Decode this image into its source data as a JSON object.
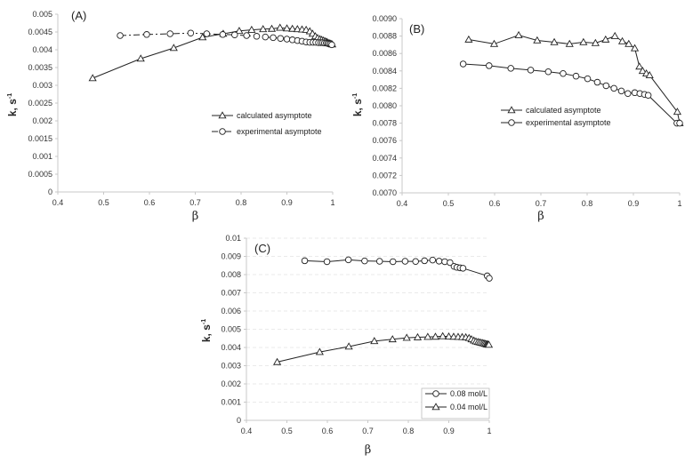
{
  "chart_data": [
    {
      "type": "line",
      "panel_label": "(A)",
      "xlabel": "β",
      "ylabel": "k, s",
      "ylabel_sup": "-1",
      "xlim": [
        0.4,
        1
      ],
      "ylim": [
        0,
        0.005
      ],
      "xticks": [
        "0.4",
        "0.5",
        "0.6",
        "0.7",
        "0.8",
        "0.9",
        "1"
      ],
      "yticks": [
        "0",
        "0.0005",
        "0.001",
        "0.0015",
        "0.002",
        "0.0025",
        "0.003",
        "0.0035",
        "0.004",
        "0.0045",
        "0.005"
      ],
      "grid": false,
      "legend_position": "center-right",
      "series": [
        {
          "name": "calculated asymptote",
          "marker": "triangle",
          "line": "solid",
          "x": [
            0.476,
            0.581,
            0.653,
            0.716,
            0.761,
            0.796,
            0.823,
            0.848,
            0.867,
            0.885,
            0.9,
            0.912,
            0.923,
            0.933,
            0.942,
            0.95,
            0.956,
            0.962,
            0.967,
            0.972,
            0.976,
            0.98,
            0.984,
            0.987,
            0.99,
            0.993,
            0.995,
            0.997,
            0.999
          ],
          "y": [
            0.0032,
            0.00375,
            0.00405,
            0.00435,
            0.00445,
            0.00453,
            0.00456,
            0.00458,
            0.00459,
            0.00462,
            0.0046,
            0.00459,
            0.00458,
            0.00457,
            0.00456,
            0.00452,
            0.00445,
            0.00438,
            0.00433,
            0.0043,
            0.00428,
            0.00426,
            0.00424,
            0.00422,
            0.0042,
            0.00418,
            0.00417,
            0.00416,
            0.00415
          ]
        },
        {
          "name": "experimental asymptote",
          "marker": "circle",
          "line": "dashed",
          "x": [
            0.536,
            0.594,
            0.645,
            0.69,
            0.725,
            0.76,
            0.786,
            0.812,
            0.834,
            0.853,
            0.87,
            0.886,
            0.9,
            0.912,
            0.923,
            0.933,
            0.942,
            0.95,
            0.957,
            0.963,
            0.969,
            0.974,
            0.978,
            0.982,
            0.986,
            0.989,
            0.992,
            0.995,
            0.998
          ],
          "y": [
            0.0044,
            0.00443,
            0.00445,
            0.00447,
            0.00445,
            0.00443,
            0.00442,
            0.0044,
            0.00438,
            0.00436,
            0.00434,
            0.00432,
            0.0043,
            0.00428,
            0.00426,
            0.00424,
            0.00422,
            0.00421,
            0.00421,
            0.00421,
            0.0042,
            0.0042,
            0.0042,
            0.00419,
            0.00419,
            0.00418,
            0.00417,
            0.00416,
            0.00414
          ]
        }
      ]
    },
    {
      "type": "line",
      "panel_label": "(B)",
      "xlabel": "β",
      "ylabel": "k, s",
      "ylabel_sup": "-1",
      "xlim": [
        0.4,
        1
      ],
      "ylim": [
        0.007,
        0.009
      ],
      "xticks": [
        "0.4",
        "0.5",
        "0.6",
        "0.7",
        "0.8",
        "0.9",
        "1"
      ],
      "yticks": [
        "0.0070",
        "0.0072",
        "0.0074",
        "0.0076",
        "0.0078",
        "0.0080",
        "0.0082",
        "0.0084",
        "0.0086",
        "0.0088",
        "0.0090"
      ],
      "grid": false,
      "legend_position": "center",
      "series": [
        {
          "name": "calculated asymptote",
          "marker": "triangle",
          "line": "solid",
          "x": [
            0.544,
            0.599,
            0.652,
            0.692,
            0.729,
            0.762,
            0.792,
            0.818,
            0.84,
            0.86,
            0.876,
            0.89,
            0.903,
            0.913,
            0.92,
            0.928,
            0.935,
            0.995,
            1.0
          ],
          "y": [
            0.00876,
            0.00871,
            0.00881,
            0.00875,
            0.00873,
            0.00871,
            0.00873,
            0.00872,
            0.00876,
            0.0088,
            0.00874,
            0.00871,
            0.00866,
            0.00845,
            0.0084,
            0.00837,
            0.00835,
            0.00793,
            0.0078
          ]
        },
        {
          "name": "experimental asymptote",
          "marker": "circle",
          "line": "solid",
          "x": [
            0.532,
            0.588,
            0.635,
            0.678,
            0.716,
            0.748,
            0.776,
            0.801,
            0.822,
            0.841,
            0.858,
            0.874,
            0.888,
            0.903,
            0.914,
            0.924,
            0.932,
            0.994,
            1.0
          ],
          "y": [
            0.00848,
            0.00846,
            0.00843,
            0.00841,
            0.00839,
            0.00837,
            0.00834,
            0.00831,
            0.00827,
            0.00823,
            0.0082,
            0.00817,
            0.00814,
            0.00815,
            0.00814,
            0.00813,
            0.00812,
            0.0078,
            0.0078
          ]
        }
      ]
    },
    {
      "type": "line",
      "panel_label": "(C)",
      "xlabel": "β",
      "ylabel": "k, s",
      "ylabel_sup": "-1",
      "xlim": [
        0.4,
        1
      ],
      "ylim": [
        0,
        0.01
      ],
      "xticks": [
        "0.4",
        "0.5",
        "0.6",
        "0.7",
        "0.8",
        "0.9",
        "1"
      ],
      "yticks": [
        "0",
        "0.001",
        "0.002",
        "0.003",
        "0.004",
        "0.005",
        "0.006",
        "0.007",
        "0.008",
        "0.009",
        "0.01"
      ],
      "grid": true,
      "legend_position": "bottom-right",
      "series": [
        {
          "name": "0.08 mol/L",
          "marker": "circle",
          "line": "solid",
          "x": [
            0.544,
            0.599,
            0.652,
            0.692,
            0.729,
            0.762,
            0.792,
            0.818,
            0.84,
            0.86,
            0.876,
            0.89,
            0.903,
            0.913,
            0.92,
            0.928,
            0.935,
            0.995,
            1.0
          ],
          "y": [
            0.00876,
            0.00871,
            0.00881,
            0.00875,
            0.00873,
            0.00871,
            0.00873,
            0.00872,
            0.00876,
            0.0088,
            0.00874,
            0.00871,
            0.00866,
            0.00845,
            0.0084,
            0.00837,
            0.00835,
            0.00793,
            0.0078
          ]
        },
        {
          "name": "0.04 mol/L",
          "marker": "triangle",
          "line": "solid",
          "x": [
            0.476,
            0.581,
            0.653,
            0.716,
            0.761,
            0.796,
            0.823,
            0.848,
            0.867,
            0.885,
            0.9,
            0.912,
            0.923,
            0.933,
            0.942,
            0.95,
            0.956,
            0.962,
            0.967,
            0.972,
            0.976,
            0.98,
            0.984,
            0.987,
            0.99,
            0.993,
            0.995,
            0.997,
            0.999
          ],
          "y": [
            0.0032,
            0.00375,
            0.00405,
            0.00435,
            0.00445,
            0.00453,
            0.00456,
            0.00458,
            0.00459,
            0.00462,
            0.0046,
            0.00459,
            0.00458,
            0.00457,
            0.00456,
            0.00452,
            0.00445,
            0.00438,
            0.00433,
            0.0043,
            0.00428,
            0.00426,
            0.00424,
            0.00422,
            0.0042,
            0.00418,
            0.00417,
            0.00416,
            0.00415
          ]
        }
      ]
    }
  ]
}
